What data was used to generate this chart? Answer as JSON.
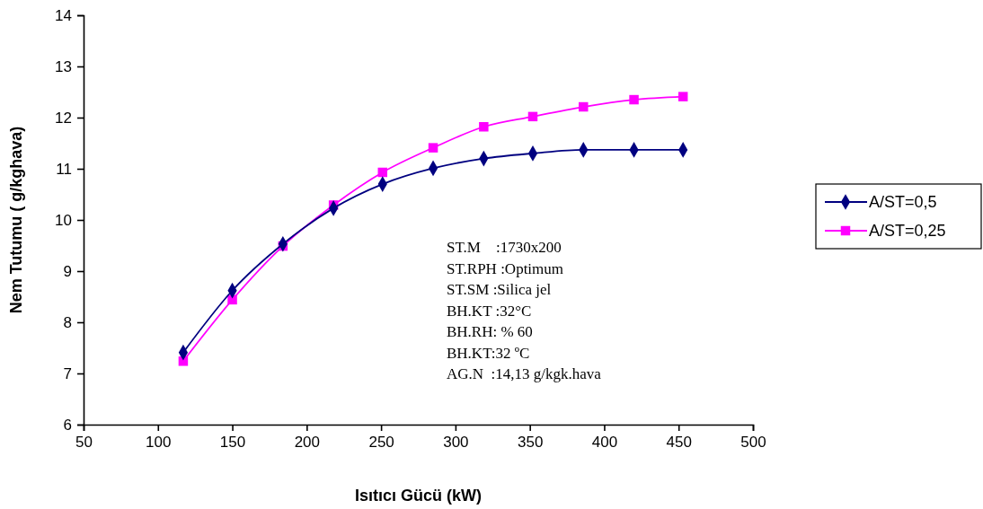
{
  "chart_data": {
    "type": "line",
    "xlabel": "Isıtıcı Gücü (kW)",
    "ylabel": "Nem Tutumu  ( g/kghava)",
    "x": [
      117,
      150,
      184,
      218,
      251,
      285,
      319,
      352,
      386,
      420,
      453
    ],
    "series": [
      {
        "name": "A/ST=0,5",
        "color": "#000080",
        "marker": "diamond",
        "values": [
          7.41,
          8.62,
          9.53,
          10.23,
          10.7,
          11.01,
          11.2,
          11.3,
          11.37,
          11.37,
          11.37
        ]
      },
      {
        "name": "A/ST=0,25",
        "color": "#ff00ff",
        "marker": "square",
        "values": [
          7.24,
          8.44,
          9.49,
          10.29,
          10.93,
          11.41,
          11.82,
          12.02,
          12.21,
          12.35,
          12.41
        ]
      }
    ],
    "xlim": [
      50,
      500
    ],
    "xticks": [
      50,
      100,
      150,
      200,
      250,
      300,
      350,
      400,
      450,
      500
    ],
    "ylim": [
      6,
      14
    ],
    "yticks": [
      6,
      7,
      8,
      9,
      10,
      11,
      12,
      13,
      14
    ],
    "legend": "right",
    "grid": false,
    "annotations": [
      "ST.M    :1730x200",
      "ST.RPH :Optimum",
      "ST.SM :Silica jel",
      "BH.KT :32°C",
      "BH.RH: % 60",
      "BH.KT:32 ºC",
      "AG.N  :14,13 g/kgk.hava"
    ]
  }
}
